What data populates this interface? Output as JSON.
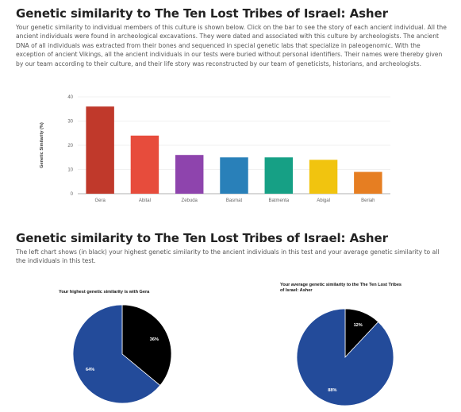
{
  "section1": {
    "title": "Genetic similarity to The Ten Lost Tribes of Israel: Asher",
    "description": "Your genetic similarity to individual members of this culture is shown below. Click on the bar to see the story of each ancient individual. All the ancient individuals were found in archeological excavations. They were dated and associated with this culture by archeologists. The ancient DNA of all individuals was extracted from their bones and sequenced in special genetic labs that specialize in paleogenomic. With the exception of ancient Vikings, all the ancient individuals in our tests were buried without personal identifiers. Their names were thereby given by our team according to their culture, and their life story was reconstructed by our team of geneticists, historians, and archeologists."
  },
  "section2": {
    "title": "Genetic similarity to The Ten Lost Tribes of Israel: Asher",
    "description": "The left chart shows (in black) your highest genetic similarity to the ancient individuals in this test and your average genetic similarity to all the individuals in this test."
  },
  "chart_data": [
    {
      "type": "bar",
      "title": "",
      "xlabel": "",
      "ylabel": "Genetic Similarity (%)",
      "ylim": [
        0,
        40
      ],
      "yticks": [
        0,
        10,
        20,
        30,
        40
      ],
      "grid": true,
      "categories": [
        "Gera",
        "Abital",
        "Zebuda",
        "Basmat",
        "Batmenta",
        "Abigal",
        "Beriah"
      ],
      "values": [
        36,
        24,
        16,
        15,
        15,
        14,
        9
      ],
      "colors": [
        "#c0392b",
        "#e74c3c",
        "#8e44ad",
        "#2980b9",
        "#16a085",
        "#f1c40f",
        "#e67e22"
      ]
    },
    {
      "type": "pie",
      "title": "Your highest genetic similarity is with Gera",
      "slices": [
        {
          "label": "36%",
          "value": 36,
          "color": "#000000"
        },
        {
          "label": "64%",
          "value": 64,
          "color": "#234b9a"
        }
      ]
    },
    {
      "type": "pie",
      "title_lines": [
        "Your average genetic similarity to the The Ten Lost Tribes",
        "of Israel: Asher"
      ],
      "slices": [
        {
          "label": "12%",
          "value": 12,
          "color": "#000000"
        },
        {
          "label": "88%",
          "value": 88,
          "color": "#234b9a"
        }
      ]
    }
  ]
}
